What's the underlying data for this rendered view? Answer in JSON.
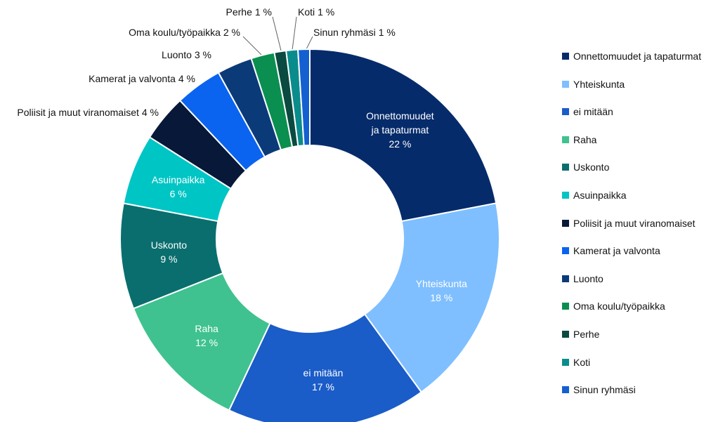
{
  "chart_data": {
    "type": "pie",
    "categories": [
      "Onnettomuudet ja tapaturmat",
      "Yhteiskunta",
      "ei mitään",
      "Raha",
      "Uskonto",
      "Asuinpaikka",
      "Poliisit ja muut viranomaiset",
      "Kamerat ja valvonta",
      "Luonto",
      "Oma koulu/työpaikka",
      "Perhe",
      "Koti",
      "Sinun ryhmäsi"
    ],
    "values": [
      22,
      18,
      17,
      12,
      9,
      6,
      4,
      4,
      3,
      2,
      1,
      1,
      1
    ],
    "value_labels": [
      "22 %",
      "18 %",
      "17 %",
      "12 %",
      "9 %",
      "6 %",
      "4 %",
      "4 %",
      "3 %",
      "2 %",
      "1 %",
      "1 %",
      "1 %"
    ],
    "colors": [
      "#062b6b",
      "#7fbfff",
      "#1a5cc8",
      "#3fc28f",
      "#0a6e6e",
      "#00c5c5",
      "#071838",
      "#0a64f0",
      "#0b3a78",
      "#0a8f50",
      "#0a4a40",
      "#0a8c8c",
      "#1460d0"
    ],
    "legend": "right"
  }
}
